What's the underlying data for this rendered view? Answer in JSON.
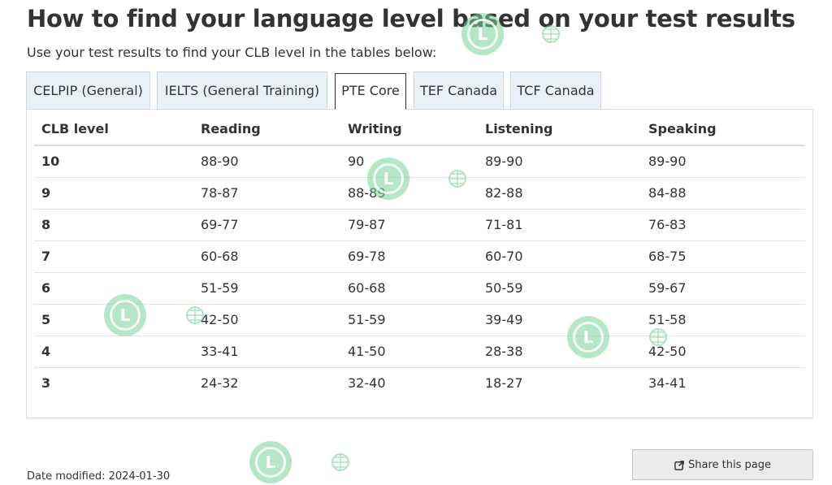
{
  "page": {
    "title": "How to find your language level based on your test results",
    "intro": "Use your test results to find your CLB level in the tables below:"
  },
  "tabs": [
    {
      "label": "CELPIP (General)",
      "active": false
    },
    {
      "label": "IELTS (General Training)",
      "active": false
    },
    {
      "label": "PTE Core",
      "active": true
    },
    {
      "label": "TEF Canada",
      "active": false
    },
    {
      "label": "TCF Canada",
      "active": false
    }
  ],
  "table": {
    "headers": [
      "CLB level",
      "Reading",
      "Writing",
      "Listening",
      "Speaking"
    ],
    "rows": [
      [
        "10",
        "88-90",
        "90",
        "89-90",
        "89-90"
      ],
      [
        "9",
        "78-87",
        "88-89",
        "82-88",
        "84-88"
      ],
      [
        "8",
        "69-77",
        "79-87",
        "71-81",
        "76-83"
      ],
      [
        "7",
        "60-68",
        "69-78",
        "60-70",
        "68-75"
      ],
      [
        "6",
        "51-59",
        "60-68",
        "50-59",
        "59-67"
      ],
      [
        "5",
        "42-50",
        "51-59",
        "39-49",
        "51-58"
      ],
      [
        "4",
        "33-41",
        "41-50",
        "28-38",
        "42-50"
      ],
      [
        "3",
        "24-32",
        "32-40",
        "18-27",
        "34-41"
      ]
    ]
  },
  "footer": {
    "date_modified": "Date modified: 2024-01-30",
    "share_label": "Share this page",
    "share_icon": "share-icon"
  },
  "watermark": {
    "logo_letter": "L",
    "color": "#78d296"
  }
}
